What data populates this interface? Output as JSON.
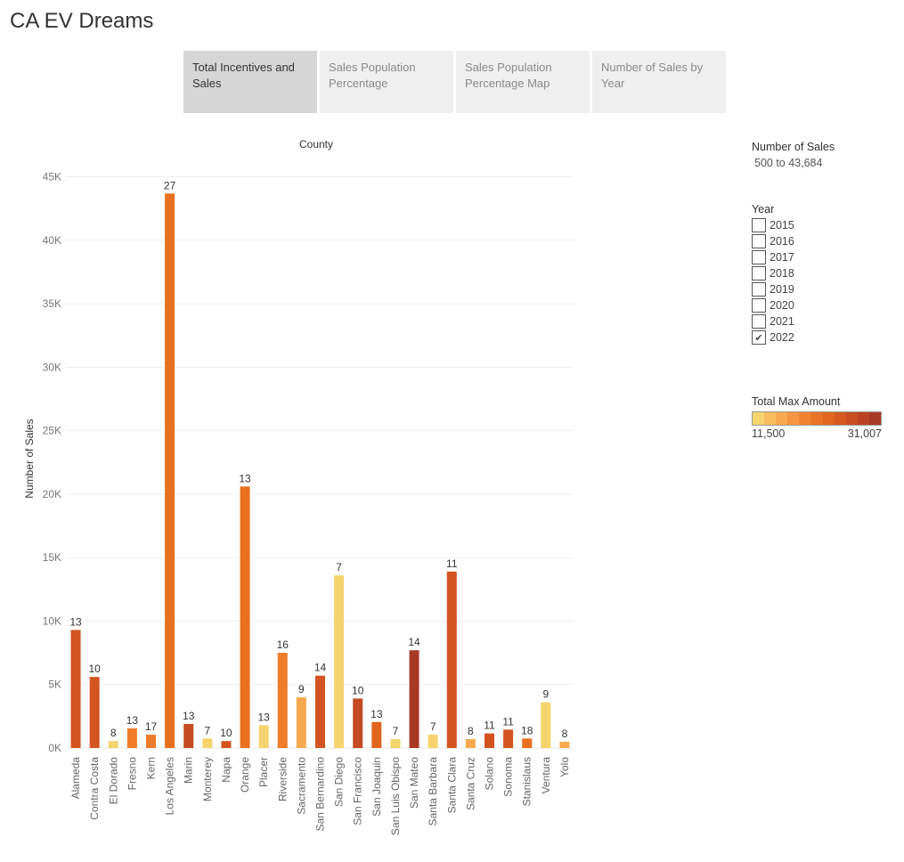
{
  "page": {
    "title": "CA EV Dreams"
  },
  "tabs": [
    {
      "label": "Total Incentives and Sales",
      "active": true
    },
    {
      "label": "Sales Population Percentage",
      "active": false
    },
    {
      "label": "Sales Population Percentage Map",
      "active": false
    },
    {
      "label": "Number of Sales by Year",
      "active": false
    }
  ],
  "legend": {
    "sales_title": "Number of Sales",
    "sales_range": "500 to 43,684",
    "year_title": "Year",
    "years": [
      {
        "label": "2015",
        "checked": false
      },
      {
        "label": "2016",
        "checked": false
      },
      {
        "label": "2017",
        "checked": false
      },
      {
        "label": "2018",
        "checked": false
      },
      {
        "label": "2019",
        "checked": false
      },
      {
        "label": "2020",
        "checked": false
      },
      {
        "label": "2021",
        "checked": false
      },
      {
        "label": "2022",
        "checked": true
      }
    ],
    "check_glyph": "✔",
    "amount_title": "Total Max Amount",
    "amount_min": "11,500",
    "amount_max": "31,007",
    "color_steps": [
      "#f5d46e",
      "#f7bd5c",
      "#f8a94f",
      "#f69540",
      "#f18430",
      "#ea7425",
      "#e16720",
      "#d65b20",
      "#c84e22",
      "#b94324",
      "#a83924"
    ]
  },
  "chart_data": {
    "type": "bar",
    "column_header": "County",
    "ylabel": "Number of Sales",
    "ylim": [
      0,
      47000
    ],
    "yticks": [
      0,
      5000,
      10000,
      15000,
      20000,
      25000,
      30000,
      35000,
      40000,
      45000
    ],
    "ytick_labels": [
      "0K",
      "5K",
      "10K",
      "15K",
      "20K",
      "25K",
      "30K",
      "35K",
      "40K",
      "45K"
    ],
    "grid": true,
    "categories": [
      "Alameda",
      "Contra Costa",
      "El Dorado",
      "Fresno",
      "Kern",
      "Los Angeles",
      "Marin",
      "Monterey",
      "Napa",
      "Orange",
      "Placer",
      "Riverside",
      "Sacramento",
      "San Bernardino",
      "San Diego",
      "San Francisco",
      "San Joaquin",
      "San Luis Obispo",
      "San Mateo",
      "Santa Barbara",
      "Santa Clara",
      "Santa Cruz",
      "Solano",
      "Sonoma",
      "Stanislaus",
      "Ventura",
      "Yolo"
    ],
    "values": [
      9300,
      5600,
      550,
      1550,
      1050,
      43684,
      1900,
      750,
      550,
      20600,
      1800,
      7500,
      4000,
      5700,
      13600,
      3900,
      2050,
      700,
      7700,
      1050,
      13900,
      700,
      1150,
      1450,
      750,
      3600,
      500
    ],
    "labels": [
      "13",
      "10",
      "8",
      "13",
      "17",
      "27",
      "13",
      "7",
      "10",
      "13",
      "13",
      "16",
      "9",
      "14",
      "7",
      "10",
      "13",
      "7",
      "14",
      "7",
      "11",
      "8",
      "11",
      "11",
      "18",
      "9",
      "8"
    ],
    "colors": [
      "#d35420",
      "#d35420",
      "#f5d46e",
      "#ef7c28",
      "#ef7c28",
      "#e8701f",
      "#c44b22",
      "#f5d46e",
      "#d35420",
      "#e8701f",
      "#f5d46e",
      "#ef7c28",
      "#f8a94f",
      "#d35420",
      "#f5d46e",
      "#c44b22",
      "#e0651e",
      "#f5d46e",
      "#a83924",
      "#f5d46e",
      "#d35420",
      "#f8a94f",
      "#d35420",
      "#d35420",
      "#e8701f",
      "#f5d46e",
      "#f8a94f"
    ]
  }
}
